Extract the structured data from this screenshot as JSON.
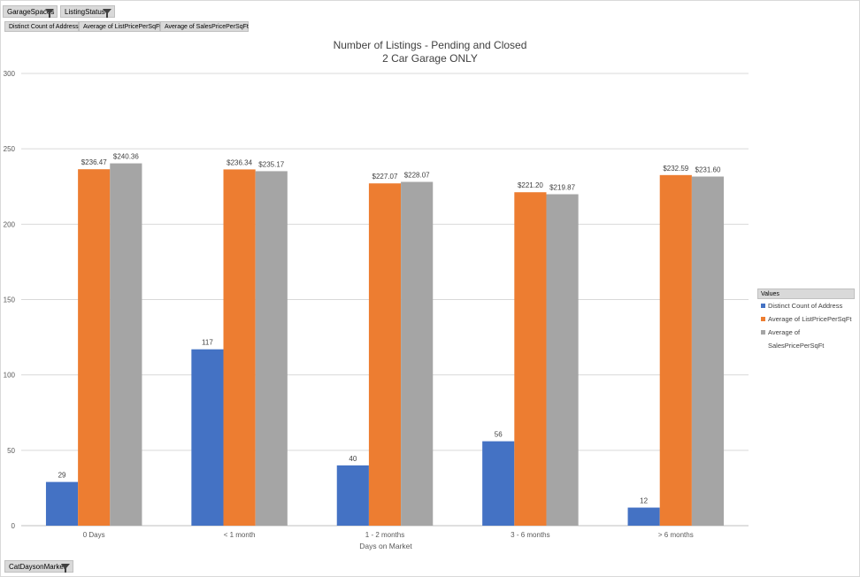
{
  "filters": {
    "garage_spaces": "GarageSpaces",
    "listing_status": "ListingStatus",
    "cat_days_on_market": "CatDaysonMarket"
  },
  "value_buttons": [
    "Distinct Count of Address",
    "Average of ListPricePerSqFt",
    "Average of SalesPricePerSqFt"
  ],
  "colors": {
    "blue": "#4472c4",
    "orange": "#ed7d31",
    "gray": "#a5a5a5"
  },
  "chart_data": {
    "type": "bar",
    "title": "Number of Listings - Pending and Closed",
    "subtitle": "2 Car Garage ONLY",
    "xlabel": "Days on Market",
    "ylabel": "",
    "ylim": [
      0,
      300
    ],
    "yticks": [
      0,
      50,
      100,
      150,
      200,
      250,
      300
    ],
    "grid": true,
    "legend_title": "Values",
    "legend_position": "right",
    "categories": [
      "0 Days",
      "< 1 month",
      "1 - 2 months",
      "3 - 6 months",
      "> 6 months"
    ],
    "series": [
      {
        "name": "Distinct Count of Address",
        "values": [
          29,
          117,
          40,
          56,
          12
        ],
        "labels": [
          "29",
          "117",
          "40",
          "56",
          "12"
        ]
      },
      {
        "name": "Average of ListPricePerSqFt",
        "values": [
          236.47,
          236.34,
          227.07,
          221.2,
          232.59
        ],
        "labels": [
          "$236.47",
          "$236.34",
          "$227.07",
          "$221.20",
          "$232.59"
        ]
      },
      {
        "name": "Average of SalesPricePerSqFt",
        "values": [
          240.36,
          235.17,
          228.07,
          219.87,
          231.6
        ],
        "labels": [
          "$240.36",
          "$235.17",
          "$228.07",
          "$219.87",
          "$231.60"
        ]
      }
    ]
  }
}
